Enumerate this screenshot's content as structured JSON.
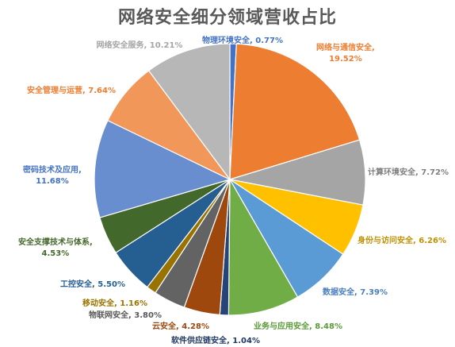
{
  "chart_data": {
    "type": "pie",
    "title": "网络安全细分领域营收占比",
    "slices": [
      {
        "name": "物理环境安全",
        "value": 0.77,
        "label": "物理环境安全, 0.77%",
        "color": "#4472C4"
      },
      {
        "name": "网络与通信安全",
        "value": 19.52,
        "label": "网络与通信安全, 19.52%",
        "color": "#ED7D31"
      },
      {
        "name": "计算环境安全",
        "value": 7.72,
        "label": "计算环境安全, 7.72%",
        "color": "#A5A5A5"
      },
      {
        "name": "身份与访问安全",
        "value": 6.26,
        "label": "身份与访问安全, 6.26%",
        "color": "#FFC000"
      },
      {
        "name": "数据安全",
        "value": 7.39,
        "label": "数据安全, 7.39%",
        "color": "#5B9BD5"
      },
      {
        "name": "业务与应用安全",
        "value": 8.48,
        "label": "业务与应用安全, 8.48%",
        "color": "#70AD47"
      },
      {
        "name": "软件供应链安全",
        "value": 1.04,
        "label": "软件供应链安全, 1.04%",
        "color": "#264478"
      },
      {
        "name": "云安全",
        "value": 4.28,
        "label": "云安全, 4.28%",
        "color": "#9E480E"
      },
      {
        "name": "物联网安全",
        "value": 3.8,
        "label": "物联网安全, 3.80%",
        "color": "#636363"
      },
      {
        "name": "移动安全",
        "value": 1.16,
        "label": "移动安全, 1.16%",
        "color": "#997300"
      },
      {
        "name": "工控安全",
        "value": 5.5,
        "label": "工控安全, 5.50%",
        "color": "#255E91"
      },
      {
        "name": "安全支撑技术与体系",
        "value": 4.53,
        "label": "安全支撑技术与体系, 4.53%",
        "color": "#43682B"
      },
      {
        "name": "密码技术及应用",
        "value": 11.68,
        "label": "密码技术及应用, 11.68%",
        "color": "#698ED0"
      },
      {
        "name": "安全管理与运营",
        "value": 7.64,
        "label": "安全管理与运营, 7.64%",
        "color": "#F1975A"
      },
      {
        "name": "网络安全服务",
        "value": 10.21,
        "label": "网络安全服务, 10.21%",
        "color": "#B7B7B7"
      }
    ],
    "label_colors": {
      "物理环境安全": "#4472C4",
      "网络与通信安全": "#ED7D31",
      "计算环境安全": "#7F7F7F",
      "身份与访问安全": "#C09000",
      "数据安全": "#4A7EBB",
      "业务与应用安全": "#5A9A38",
      "软件供应链安全": "#203864",
      "云安全": "#9E480E",
      "物联网安全": "#595959",
      "移动安全": "#997300",
      "工控安全": "#255E91",
      "安全支撑技术与体系": "#43682B",
      "密码技术及应用": "#4472C4",
      "安全管理与运营": "#ED7D31",
      "网络安全服务": "#A5A5A5"
    },
    "start_angle_deg": 0,
    "direction": "clockwise",
    "legend": "none",
    "data_labels": "outside"
  }
}
